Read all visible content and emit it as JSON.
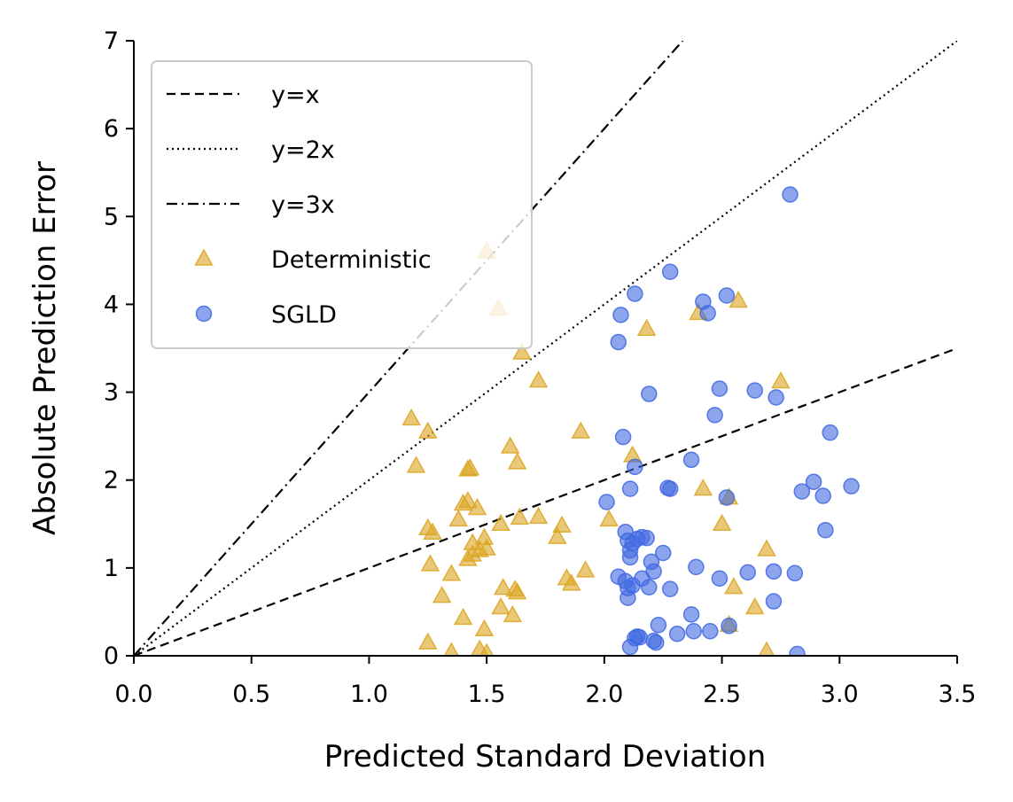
{
  "chart_data": {
    "type": "scatter",
    "title": "",
    "xlabel": "Predicted Standard Deviation",
    "ylabel": "Absolute Prediction Error",
    "xlim": [
      0,
      3.5
    ],
    "ylim": [
      0,
      7
    ],
    "xticks": [
      "0.0",
      "0.5",
      "1.0",
      "1.5",
      "2.0",
      "2.5",
      "3.0",
      "3.5"
    ],
    "yticks": [
      "0",
      "1",
      "2",
      "3",
      "4",
      "5",
      "6",
      "7"
    ],
    "grid": false,
    "legend": {
      "location": "upper-left"
    },
    "reference_lines": [
      {
        "name": "y=x",
        "slope": 1,
        "style": "dashed"
      },
      {
        "name": "y=2x",
        "slope": 2,
        "style": "dotted"
      },
      {
        "name": "y=3x",
        "slope": 3,
        "style": "dashdot"
      }
    ],
    "series": [
      {
        "name": "Deterministic",
        "marker": "triangle",
        "color": "#DAA520",
        "points": [
          [
            1.5,
            4.6
          ],
          [
            1.55,
            3.95
          ],
          [
            1.65,
            3.45
          ],
          [
            1.72,
            3.13
          ],
          [
            1.18,
            2.7
          ],
          [
            1.25,
            2.55
          ],
          [
            1.2,
            2.16
          ],
          [
            1.42,
            2.12
          ],
          [
            1.43,
            2.13
          ],
          [
            1.6,
            2.38
          ],
          [
            1.63,
            2.2
          ],
          [
            1.9,
            2.55
          ],
          [
            2.12,
            2.28
          ],
          [
            1.25,
            1.45
          ],
          [
            1.27,
            1.4
          ],
          [
            1.38,
            1.55
          ],
          [
            1.4,
            1.73
          ],
          [
            1.42,
            1.76
          ],
          [
            1.46,
            1.68
          ],
          [
            1.56,
            1.5
          ],
          [
            1.64,
            1.57
          ],
          [
            1.72,
            1.58
          ],
          [
            1.8,
            1.35
          ],
          [
            1.82,
            1.48
          ],
          [
            2.02,
            1.55
          ],
          [
            1.44,
            1.28
          ],
          [
            1.47,
            1.2
          ],
          [
            1.49,
            1.34
          ],
          [
            1.5,
            1.22
          ],
          [
            1.42,
            1.1
          ],
          [
            1.44,
            1.15
          ],
          [
            1.26,
            1.04
          ],
          [
            1.35,
            0.93
          ],
          [
            1.57,
            0.77
          ],
          [
            1.62,
            0.75
          ],
          [
            1.63,
            0.72
          ],
          [
            1.56,
            0.55
          ],
          [
            1.61,
            0.46
          ],
          [
            1.84,
            0.88
          ],
          [
            1.86,
            0.82
          ],
          [
            1.92,
            0.97
          ],
          [
            1.31,
            0.68
          ],
          [
            1.4,
            0.43
          ],
          [
            1.49,
            0.3
          ],
          [
            1.25,
            0.15
          ],
          [
            1.35,
            0.04
          ],
          [
            1.47,
            0.07
          ],
          [
            1.5,
            0.03
          ],
          [
            2.18,
            3.72
          ],
          [
            2.4,
            3.9
          ],
          [
            2.57,
            4.04
          ],
          [
            2.75,
            3.12
          ],
          [
            2.42,
            1.9
          ],
          [
            2.53,
            1.8
          ],
          [
            2.5,
            1.5
          ],
          [
            2.69,
            1.21
          ],
          [
            2.55,
            0.78
          ],
          [
            2.64,
            0.55
          ],
          [
            2.53,
            0.35
          ],
          [
            2.69,
            0.05
          ]
        ]
      },
      {
        "name": "SGLD",
        "marker": "circle",
        "color": "#4169E1",
        "points": [
          [
            2.79,
            5.25
          ],
          [
            2.28,
            4.37
          ],
          [
            2.13,
            4.12
          ],
          [
            2.52,
            4.1
          ],
          [
            2.42,
            4.03
          ],
          [
            2.44,
            3.9
          ],
          [
            2.07,
            3.88
          ],
          [
            2.06,
            3.57
          ],
          [
            2.19,
            2.98
          ],
          [
            2.49,
            3.04
          ],
          [
            2.64,
            3.02
          ],
          [
            2.73,
            2.94
          ],
          [
            2.47,
            2.74
          ],
          [
            2.08,
            2.49
          ],
          [
            2.96,
            2.54
          ],
          [
            2.13,
            2.15
          ],
          [
            2.37,
            2.23
          ],
          [
            2.11,
            1.9
          ],
          [
            2.28,
            1.9
          ],
          [
            2.27,
            1.91
          ],
          [
            2.89,
            1.98
          ],
          [
            2.84,
            1.87
          ],
          [
            2.93,
            1.82
          ],
          [
            3.05,
            1.93
          ],
          [
            2.52,
            1.8
          ],
          [
            2.01,
            1.75
          ],
          [
            2.09,
            1.41
          ],
          [
            2.1,
            1.31
          ],
          [
            2.12,
            1.28
          ],
          [
            2.14,
            1.33
          ],
          [
            2.16,
            1.35
          ],
          [
            2.18,
            1.34
          ],
          [
            2.11,
            1.2
          ],
          [
            2.11,
            1.12
          ],
          [
            2.2,
            1.07
          ],
          [
            2.21,
            0.96
          ],
          [
            2.25,
            1.17
          ],
          [
            2.39,
            1.01
          ],
          [
            2.94,
            1.43
          ],
          [
            2.61,
            0.95
          ],
          [
            2.72,
            0.96
          ],
          [
            2.81,
            0.94
          ],
          [
            2.06,
            0.9
          ],
          [
            2.09,
            0.85
          ],
          [
            2.1,
            0.77
          ],
          [
            2.12,
            0.8
          ],
          [
            2.16,
            0.88
          ],
          [
            2.19,
            0.78
          ],
          [
            2.28,
            0.76
          ],
          [
            2.49,
            0.88
          ],
          [
            2.1,
            0.66
          ],
          [
            2.72,
            0.62
          ],
          [
            2.37,
            0.47
          ],
          [
            2.23,
            0.35
          ],
          [
            2.31,
            0.25
          ],
          [
            2.38,
            0.28
          ],
          [
            2.45,
            0.28
          ],
          [
            2.53,
            0.34
          ],
          [
            2.13,
            0.2
          ],
          [
            2.14,
            0.22
          ],
          [
            2.15,
            0.21
          ],
          [
            2.21,
            0.17
          ],
          [
            2.22,
            0.15
          ],
          [
            2.11,
            0.1
          ],
          [
            2.82,
            0.02
          ]
        ]
      }
    ]
  }
}
